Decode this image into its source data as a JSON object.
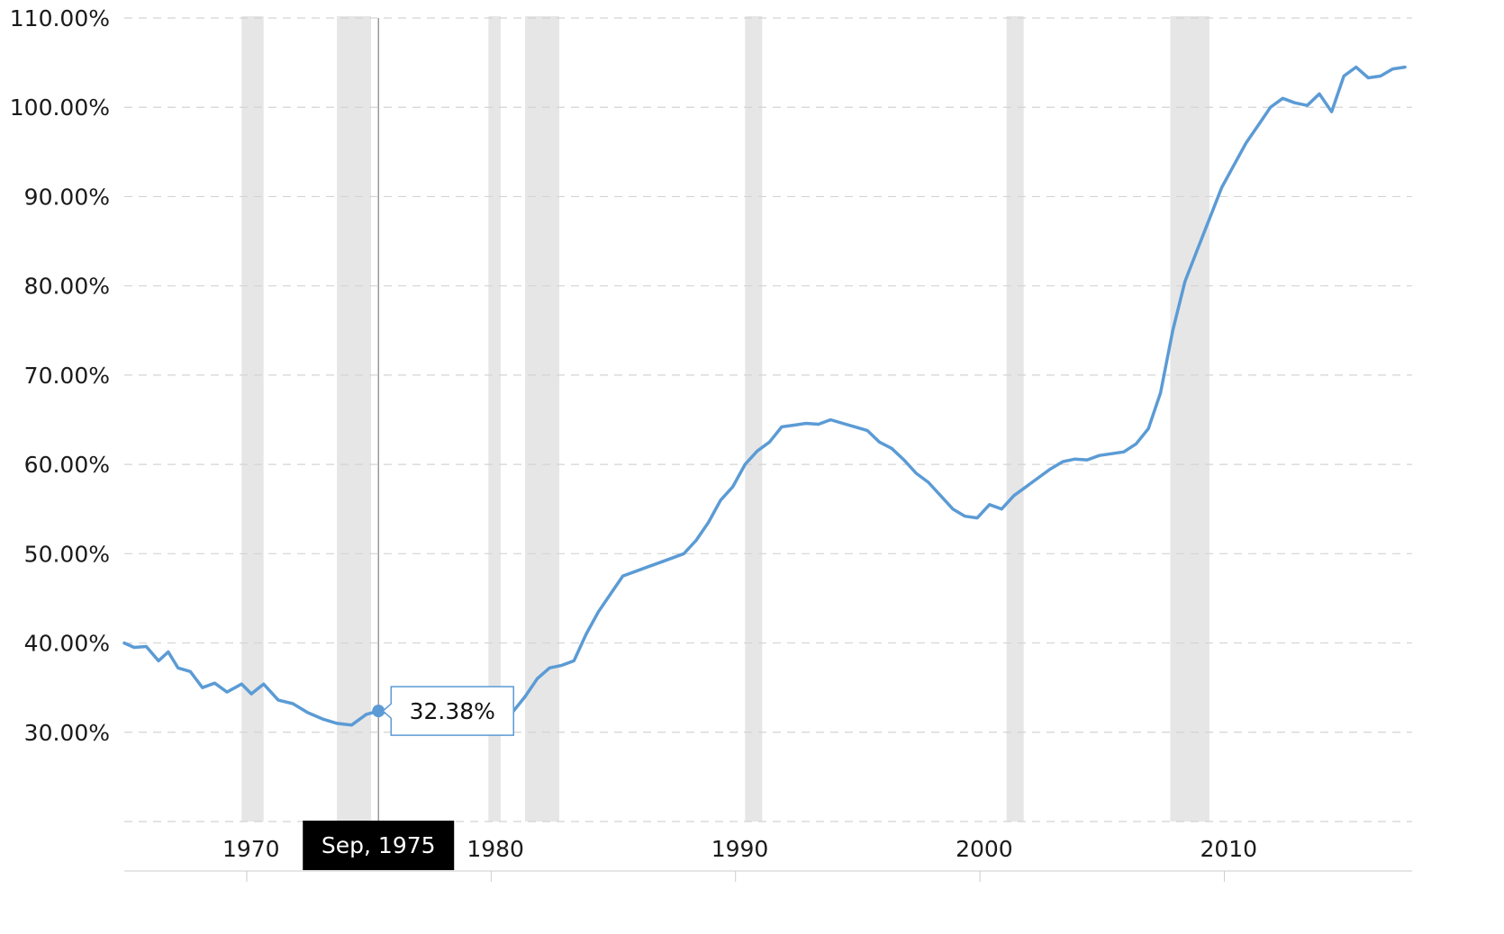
{
  "colors": {
    "line": "#5b9bd5",
    "recession_band": "#e6e6e6",
    "grid": "#d4d4d4",
    "axis_text": "#1a1a1a",
    "tooltip_bg": "#000000",
    "tooltip_text": "#ffffff",
    "crosshair": "#8a8a8a"
  },
  "chart_data": {
    "type": "line",
    "title": "",
    "xlabel": "",
    "ylabel": "",
    "xlim": [
      1965.1,
      2017.5
    ],
    "ylim": [
      20,
      110
    ],
    "grid": true,
    "yticks": [
      {
        "value": 30,
        "label": "30.00%"
      },
      {
        "value": 40,
        "label": "40.00%"
      },
      {
        "value": 50,
        "label": "50.00%"
      },
      {
        "value": 60,
        "label": "60.00%"
      },
      {
        "value": 70,
        "label": "70.00%"
      },
      {
        "value": 80,
        "label": "80.00%"
      },
      {
        "value": 90,
        "label": "90.00%"
      },
      {
        "value": 100,
        "label": "100.00%"
      },
      {
        "value": 110,
        "label": "110.00%"
      }
    ],
    "grid_values": [
      20,
      30,
      40,
      50,
      60,
      70,
      80,
      90,
      100,
      110
    ],
    "xticks": [
      {
        "value": 1970,
        "label": "1970"
      },
      {
        "value": 1980,
        "label": "1980"
      },
      {
        "value": 1990,
        "label": "1990"
      },
      {
        "value": 2000,
        "label": "2000"
      },
      {
        "value": 2010,
        "label": "2010"
      }
    ],
    "recessions": [
      {
        "start": 1969.9,
        "end": 1970.8
      },
      {
        "start": 1973.8,
        "end": 1975.2
      },
      {
        "start": 1980.0,
        "end": 1980.5
      },
      {
        "start": 1981.5,
        "end": 1982.9
      },
      {
        "start": 1990.5,
        "end": 1991.2
      },
      {
        "start": 2001.2,
        "end": 2001.9
      },
      {
        "start": 2007.9,
        "end": 2009.5
      }
    ],
    "series": [
      {
        "name": "",
        "x": [
          1965.1,
          1965.5,
          1966.0,
          1966.5,
          1966.9,
          1967.3,
          1967.8,
          1968.3,
          1968.8,
          1969.3,
          1969.9,
          1970.3,
          1970.8,
          1971.4,
          1972.0,
          1972.6,
          1973.2,
          1973.8,
          1974.4,
          1975.0,
          1975.5,
          1976.0,
          1976.5,
          1977.0,
          1977.5,
          1978.0,
          1978.5,
          1979.0,
          1979.5,
          1980.0,
          1980.5,
          1981.0,
          1981.5,
          1982.0,
          1982.5,
          1983.0,
          1983.5,
          1984.0,
          1984.5,
          1985.0,
          1985.5,
          1986.0,
          1986.5,
          1987.0,
          1987.5,
          1988.0,
          1988.5,
          1989.0,
          1989.5,
          1990.0,
          1990.5,
          1991.0,
          1991.5,
          1992.0,
          1992.5,
          1993.0,
          1993.5,
          1994.0,
          1994.5,
          1995.0,
          1995.5,
          1996.0,
          1996.5,
          1997.0,
          1997.5,
          1998.0,
          1998.5,
          1999.0,
          1999.5,
          2000.0,
          2000.5,
          2001.0,
          2001.5,
          2002.0,
          2002.5,
          2003.0,
          2003.5,
          2004.0,
          2004.5,
          2005.0,
          2005.5,
          2006.0,
          2006.5,
          2007.0,
          2007.5,
          2008.0,
          2008.5,
          2009.0,
          2009.5,
          2010.0,
          2010.5,
          2011.0,
          2011.5,
          2012.0,
          2012.5,
          2013.0,
          2013.5,
          2014.0,
          2014.5,
          2015.0,
          2015.5,
          2016.0,
          2016.5,
          2017.0,
          2017.5
        ],
        "values": [
          40.0,
          39.5,
          39.6,
          38.0,
          39.0,
          37.2,
          36.8,
          35.0,
          35.5,
          34.5,
          35.4,
          34.3,
          35.4,
          33.6,
          33.2,
          32.2,
          31.5,
          31.0,
          30.8,
          32.0,
          32.38,
          32.1,
          31.7,
          31.0,
          30.8,
          30.5,
          30.3,
          30.2,
          30.4,
          30.7,
          30.6,
          32.3,
          34.0,
          36.0,
          37.2,
          37.5,
          38.0,
          41.0,
          43.5,
          45.5,
          47.5,
          48.0,
          48.5,
          49.0,
          49.5,
          50.0,
          51.5,
          53.5,
          56.0,
          57.5,
          60.0,
          61.5,
          62.5,
          64.2,
          64.4,
          64.6,
          64.5,
          65.0,
          64.6,
          64.2,
          63.8,
          62.5,
          61.8,
          60.5,
          59.0,
          58.0,
          56.5,
          55.0,
          54.2,
          54.0,
          55.5,
          55.0,
          56.5,
          57.5,
          58.5,
          59.5,
          60.3,
          60.6,
          60.5,
          61.0,
          61.2,
          61.4,
          62.3,
          64.0,
          68.0,
          75.0,
          80.5,
          84.0,
          87.5,
          91.0,
          93.5,
          96.0,
          98.0,
          100.0,
          101.0,
          100.5,
          100.2,
          101.5,
          99.5,
          103.5,
          104.5,
          103.3,
          103.5,
          104.3,
          104.5
        ]
      }
    ],
    "highlight": {
      "x": 1975.5,
      "value": 32.38,
      "label": "32.38%",
      "date_label": "Sep, 1975"
    }
  }
}
